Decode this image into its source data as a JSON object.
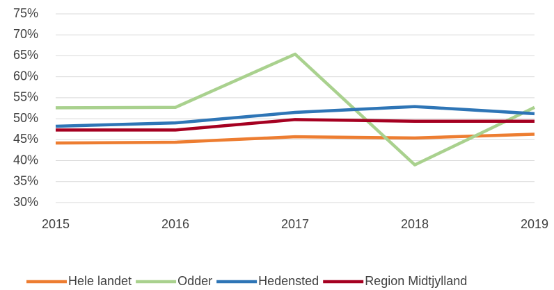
{
  "chart_data": {
    "type": "line",
    "x": [
      2015,
      2016,
      2017,
      2018,
      2019
    ],
    "xlim": [
      2015,
      2019
    ],
    "xticks": [
      2015,
      2016,
      2017,
      2018,
      2019
    ],
    "ylim": [
      30,
      75
    ],
    "yticks": [
      {
        "value": 30,
        "label": "30%"
      },
      {
        "value": 35,
        "label": "35%"
      },
      {
        "value": 40,
        "label": "40%"
      },
      {
        "value": 45,
        "label": "45%"
      },
      {
        "value": 50,
        "label": "50%"
      },
      {
        "value": 55,
        "label": "55%"
      },
      {
        "value": 60,
        "label": "60%"
      },
      {
        "value": 65,
        "label": "65%"
      },
      {
        "value": 70,
        "label": "70%"
      },
      {
        "value": 75,
        "label": "75%"
      }
    ],
    "grid": true,
    "legend": "bottom",
    "series": [
      {
        "name": "Hele landet",
        "color": "#ed7d31",
        "values": [
          44.2,
          44.4,
          45.7,
          45.4,
          46.3
        ]
      },
      {
        "name": "Odder",
        "color": "#a9d18e",
        "values": [
          52.6,
          52.7,
          65.4,
          39.0,
          52.7
        ]
      },
      {
        "name": "Hedensted",
        "color": "#2e75b6",
        "values": [
          48.2,
          49.0,
          51.5,
          52.9,
          51.2
        ]
      },
      {
        "name": "Region Midtjylland",
        "color": "#a50021",
        "values": [
          47.3,
          47.3,
          49.8,
          49.4,
          49.4
        ]
      }
    ]
  }
}
